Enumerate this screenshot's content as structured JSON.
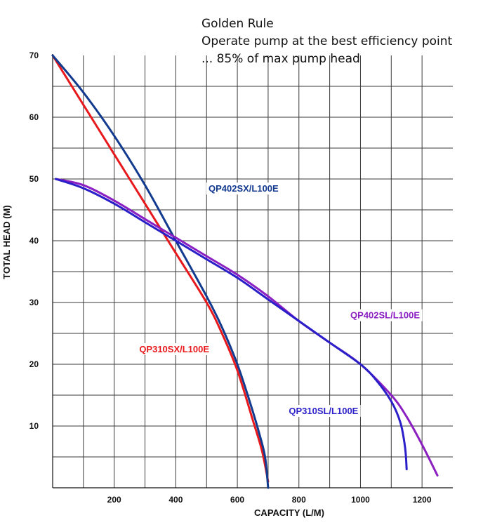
{
  "chart_data": {
    "type": "line",
    "title": "",
    "xlabel": "CAPACITY (L/M)",
    "ylabel": "TOTAL HEAD (M)",
    "xlim": [
      0,
      1300
    ],
    "ylim": [
      0,
      70
    ],
    "xticks": [
      200,
      400,
      600,
      800,
      1000,
      1200
    ],
    "yticks": [
      10,
      20,
      30,
      40,
      50,
      60,
      70
    ],
    "grid": true,
    "annotation": [
      "Golden Rule",
      "Operate pump at the best efficiency point",
      "... 85% of max pump head"
    ],
    "series": [
      {
        "name": "QP310SX/L100E",
        "color": "#e8191c",
        "x": [
          0,
          100,
          200,
          300,
          400,
          500,
          550,
          600,
          650,
          680,
          700
        ],
        "y": [
          70,
          62,
          54,
          46,
          38,
          30,
          25,
          19,
          11,
          6,
          1
        ]
      },
      {
        "name": "QP402SX/L100E",
        "color": "#123a8f",
        "x": [
          0,
          100,
          200,
          300,
          400,
          500,
          550,
          600,
          640,
          670,
          690,
          700
        ],
        "y": [
          70,
          64,
          57,
          49,
          40,
          31,
          26,
          20,
          14,
          9,
          5,
          0
        ]
      },
      {
        "name": "QP402SL/L100E",
        "color": "#8b1fc2",
        "x": [
          10,
          100,
          200,
          300,
          400,
          500,
          600,
          700,
          800,
          900,
          1000,
          1100,
          1150,
          1200,
          1250
        ],
        "y": [
          50,
          49,
          46.5,
          43.5,
          40.5,
          37.5,
          34.5,
          31,
          27,
          23.5,
          20,
          15,
          11.5,
          7,
          2
        ]
      },
      {
        "name": "QP310SL/L100E",
        "color": "#2a1fc8",
        "x": [
          10,
          100,
          200,
          300,
          400,
          500,
          600,
          700,
          800,
          900,
          1000,
          1050,
          1100,
          1130,
          1145,
          1150
        ],
        "y": [
          50,
          48.5,
          46,
          43,
          40,
          37,
          34,
          30.5,
          27,
          23.5,
          20,
          17.5,
          14,
          10.5,
          6.5,
          3
        ]
      }
    ],
    "series_labels": [
      {
        "text": "QP402SX/L100E",
        "x": 620,
        "y": 48.5,
        "color": "#123a8f"
      },
      {
        "text": "QP402SL/L100E",
        "x": 1080,
        "y": 28,
        "color": "#8b1fc2"
      },
      {
        "text": "QP310SX/L100E",
        "x": 395,
        "y": 22.5,
        "color": "#e8191c"
      },
      {
        "text": "QP310SL/L100E",
        "x": 880,
        "y": 12.5,
        "color": "#2a1fc8"
      }
    ]
  }
}
